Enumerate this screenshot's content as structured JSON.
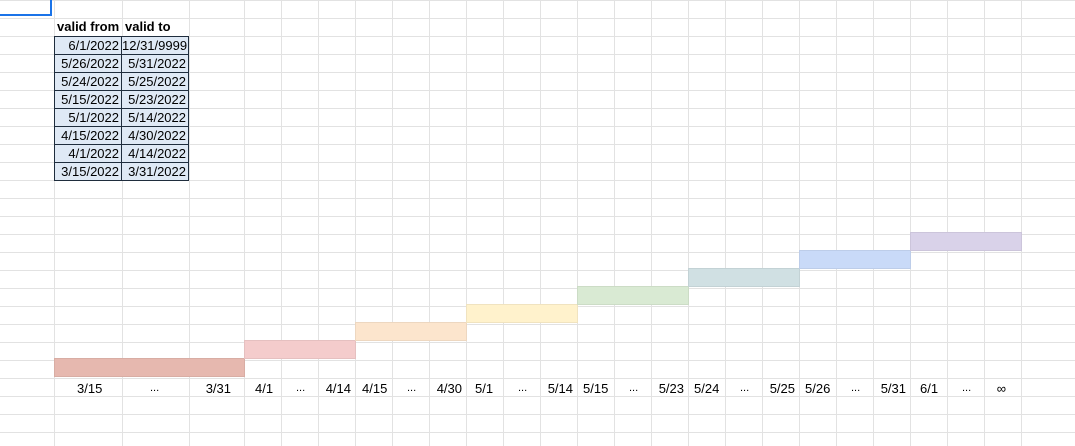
{
  "table": {
    "headers": [
      "valid from",
      "valid to"
    ],
    "rows": [
      [
        "6/1/2022",
        "12/31/9999"
      ],
      [
        "5/26/2022",
        "5/31/2022"
      ],
      [
        "5/24/2022",
        "5/25/2022"
      ],
      [
        "5/15/2022",
        "5/23/2022"
      ],
      [
        "5/1/2022",
        "5/14/2022"
      ],
      [
        "4/15/2022",
        "4/30/2022"
      ],
      [
        "4/1/2022",
        "4/14/2022"
      ],
      [
        "3/15/2022",
        "3/31/2022"
      ]
    ]
  },
  "timeline": {
    "segments": [
      {
        "labels": [
          "3/15",
          "...",
          "3/31"
        ],
        "color": "#e6b8af"
      },
      {
        "labels": [
          "4/1",
          "...",
          "4/14"
        ],
        "color": "#f4cccc"
      },
      {
        "labels": [
          "4/15",
          "...",
          "4/30"
        ],
        "color": "#fce5cd"
      },
      {
        "labels": [
          "5/1",
          "...",
          "5/14"
        ],
        "color": "#fff2cc"
      },
      {
        "labels": [
          "5/15",
          "...",
          "5/23"
        ],
        "color": "#d9ead3"
      },
      {
        "labels": [
          "5/24",
          "...",
          "5/25"
        ],
        "color": "#d0e0e3"
      },
      {
        "labels": [
          "5/26",
          "...",
          "5/31"
        ],
        "color": "#c9daf8"
      },
      {
        "labels": [
          "6/1",
          "...",
          "∞"
        ],
        "color": "#d9d2e9"
      }
    ]
  }
}
